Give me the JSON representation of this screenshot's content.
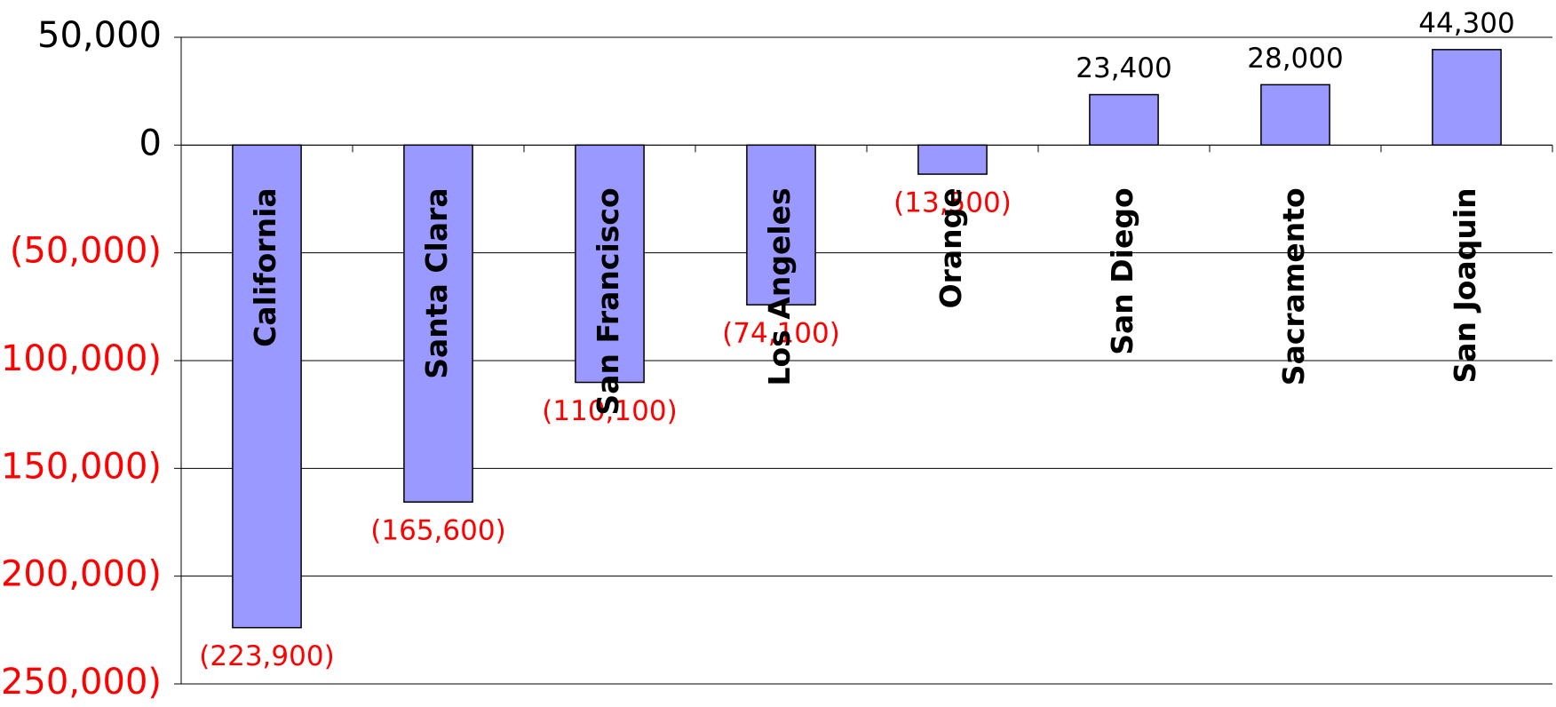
{
  "chart_data": {
    "type": "bar",
    "categories": [
      "California",
      "Santa Clara",
      "San Francisco",
      "Los Angeles",
      "Orange",
      "San Diego",
      "Sacramento",
      "San Joaquin"
    ],
    "values": [
      -223900,
      -165600,
      -110100,
      -74100,
      -13500,
      23400,
      28000,
      44300
    ],
    "value_labels": [
      "(223,900)",
      "(165,600)",
      "(110,100)",
      "(74,100)",
      "(13,500)",
      "23,400",
      "28,000",
      "44,300"
    ],
    "color": "#9999ff",
    "negative_label_color": "#ff0000",
    "ylim": [
      -250000,
      50000
    ],
    "yticks": [
      {
        "value": -250000,
        "label": "(250,000)"
      },
      {
        "value": -200000,
        "label": "(200,000)"
      },
      {
        "value": -150000,
        "label": "(150,000)"
      },
      {
        "value": -100000,
        "label": "(100,000)"
      },
      {
        "value": -50000,
        "label": "(50,000)"
      },
      0,
      {
        "value": 50000,
        "label": "50,000"
      }
    ],
    "grid": true
  }
}
